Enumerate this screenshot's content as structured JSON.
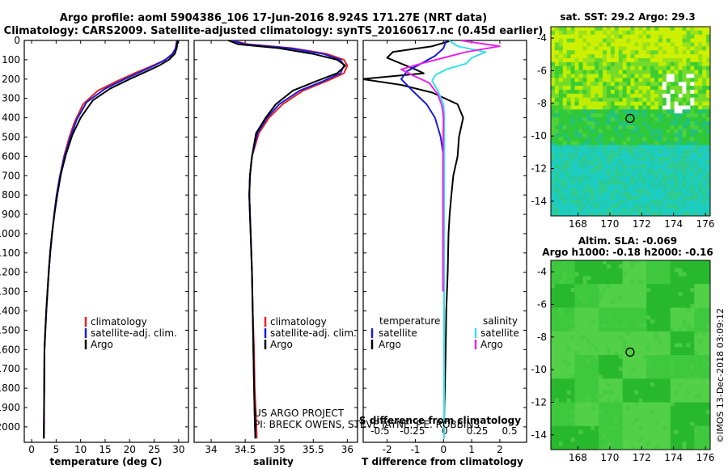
{
  "header": {
    "title_line1": "Argo profile: aoml 5904386_106 17-Jun-2016 8.924S 171.27E (NRT data)",
    "title_line2": "Climatology: CARS2009. Satellite-adjusted climatology: synTS_20160617.nc (0.45d earlier)"
  },
  "colors": {
    "climatology": "#e8201e",
    "satellite": "#1a1adc",
    "argo": "#000000",
    "sat_salinity": "#33e0e8",
    "clim_salinity": "#ea22ea"
  },
  "legend": {
    "climatology": "climatology",
    "satellite": "satellite-adj. clim.",
    "argo": "Argo",
    "satellite_short": "satellite",
    "temperature": "temperature",
    "salinity": "salinity"
  },
  "credits": {
    "line1": "US ARGO PROJECT",
    "line2": "PI: BRECK OWENS, STEVE JAYNE, P.E. ROBBINS"
  },
  "imos_stamp": "©IMOS 13-Dec-2018 03:09:12",
  "chart_data": [
    {
      "type": "line",
      "title": "",
      "xlabel": "temperature (deg C)",
      "ylabel": "",
      "xlim": [
        -1.5,
        32
      ],
      "ylim": [
        2080,
        0
      ],
      "xticks": [
        "0",
        "5",
        "10",
        "15",
        "20",
        "25",
        "30"
      ],
      "yticks": [
        "0",
        "100",
        "200",
        "300",
        "400",
        "500",
        "600",
        "700",
        "800",
        "900",
        "1000",
        "1100",
        "1200",
        "1300",
        "1400",
        "1500",
        "1600",
        "1700",
        "1800",
        "1900",
        "2000"
      ],
      "series": [
        {
          "name": "climatology",
          "color": "#e8201e",
          "x": [
            29.6,
            29.3,
            28.5,
            26.5,
            23.8,
            21,
            17.5,
            13.5,
            10.5,
            8.8,
            7.7,
            6.6,
            5.8,
            5.1,
            4.6,
            4.2,
            3.8,
            3.5,
            3.25,
            3,
            2.8,
            2.62,
            2.5
          ],
          "y": [
            0,
            50,
            80,
            110,
            140,
            170,
            210,
            260,
            330,
            420,
            500,
            600,
            700,
            800,
            900,
            1000,
            1100,
            1200,
            1300,
            1400,
            1500,
            1600,
            2060
          ]
        },
        {
          "name": "satellite-adj. clim.",
          "color": "#1a1adc",
          "x": [
            29.7,
            29.4,
            28.7,
            27.3,
            25,
            22.5,
            19,
            15,
            11.2,
            9.2,
            7.9,
            6.7,
            5.8,
            5.1,
            4.6,
            4.2,
            3.8,
            3.5,
            3.25,
            3,
            2.8,
            2.62,
            2.5
          ],
          "y": [
            0,
            40,
            70,
            100,
            130,
            160,
            200,
            250,
            320,
            410,
            500,
            600,
            700,
            800,
            900,
            1000,
            1100,
            1200,
            1300,
            1400,
            1500,
            1600,
            2060
          ]
        },
        {
          "name": "Argo",
          "color": "#000000",
          "x": [
            29.8,
            29.6,
            29.2,
            28,
            26,
            23.5,
            20,
            16,
            12.5,
            10,
            8.3,
            7,
            6,
            5.3,
            4.7,
            4.2,
            3.8,
            3.5,
            3.25,
            3,
            2.8,
            2.62,
            2.5
          ],
          "y": [
            0,
            40,
            70,
            100,
            130,
            160,
            200,
            250,
            310,
            400,
            490,
            590,
            690,
            790,
            890,
            990,
            1090,
            1190,
            1290,
            1390,
            1490,
            1590,
            2060
          ]
        }
      ]
    },
    {
      "type": "line",
      "title": "",
      "xlabel": "salinity",
      "ylabel": "",
      "xlim": [
        33.75,
        36.15
      ],
      "ylim": [
        2080,
        0
      ],
      "xticks": [
        "34",
        "34.5",
        "35",
        "35.5",
        "36"
      ],
      "series": [
        {
          "name": "climatology",
          "color": "#e8201e",
          "x": [
            34.3,
            34.55,
            35.2,
            35.7,
            35.95,
            36,
            35.95,
            35.7,
            35.35,
            35.05,
            34.85,
            34.7,
            34.6,
            34.57,
            34.56,
            34.57,
            34.58,
            34.6,
            34.61,
            34.63,
            34.64,
            34.66,
            34.67
          ],
          "y": [
            0,
            20,
            40,
            70,
            100,
            130,
            170,
            210,
            260,
            330,
            400,
            480,
            600,
            700,
            800,
            900,
            1000,
            1200,
            1400,
            1600,
            1800,
            1950,
            2060
          ]
        },
        {
          "name": "satellite-adj. clim.",
          "color": "#1a1adc",
          "x": [
            34.3,
            34.5,
            35.15,
            35.65,
            35.9,
            35.95,
            35.9,
            35.65,
            35.3,
            35.0,
            34.82,
            34.68,
            34.6,
            34.57,
            34.56,
            34.57,
            34.58,
            34.6,
            34.61,
            34.62,
            34.63,
            34.64,
            34.65
          ],
          "y": [
            0,
            20,
            40,
            70,
            100,
            130,
            170,
            210,
            260,
            330,
            400,
            480,
            600,
            700,
            800,
            900,
            1000,
            1200,
            1400,
            1600,
            1800,
            1950,
            2060
          ]
        },
        {
          "name": "Argo",
          "color": "#000000",
          "x": [
            34.25,
            34.4,
            35.0,
            35.5,
            35.85,
            35.97,
            35.85,
            35.55,
            35.2,
            34.95,
            34.8,
            34.66,
            34.6,
            34.57,
            34.56,
            34.57,
            34.58,
            34.6,
            34.61,
            34.62,
            34.63,
            34.64,
            34.65
          ],
          "y": [
            0,
            20,
            40,
            70,
            100,
            130,
            170,
            210,
            260,
            330,
            400,
            480,
            600,
            700,
            800,
            900,
            1000,
            1200,
            1400,
            1600,
            1800,
            1950,
            2060
          ]
        }
      ]
    },
    {
      "type": "line",
      "title": "",
      "xlabel": "T difference from climatology",
      "ylabel": "",
      "xlim": [
        -2.85,
        2.95
      ],
      "ylim": [
        2080,
        0
      ],
      "xticks": [
        "-2",
        "-1",
        "0",
        "1",
        "2"
      ],
      "secondary_xlabel": "S difference from climatology",
      "secondary_xticks": [
        "-0.5",
        "-0.25",
        "0",
        "0.25",
        "0.5"
      ],
      "series": [
        {
          "name": "temperature Argo",
          "color": "#000000",
          "x": [
            0.3,
            -0.4,
            -1.8,
            -2.0,
            -1.5,
            -1.0,
            -0.7,
            -2.9,
            -1.5,
            -0.4,
            0.5,
            0.7,
            0.55,
            0.5,
            0.35,
            0.28,
            0.22,
            0.18,
            0.15,
            0.1,
            0.08,
            0.05,
            0.03,
            0.02,
            0.02
          ],
          "y": [
            0,
            30,
            60,
            90,
            120,
            150,
            170,
            200,
            230,
            270,
            330,
            400,
            500,
            600,
            700,
            800,
            900,
            1000,
            1200,
            1400,
            1600,
            1800,
            1900,
            2000,
            2060
          ]
        },
        {
          "name": "temperature satellite",
          "color": "#1a1adc",
          "x": [
            0.1,
            0.0,
            -0.3,
            -0.8,
            -1.3,
            -1.5,
            -1.1,
            -0.6,
            -0.3,
            -0.1,
            0.0,
            0.02,
            0.02,
            0.02,
            0.02,
            0.02
          ],
          "y": [
            0,
            40,
            80,
            120,
            160,
            200,
            260,
            330,
            400,
            500,
            600,
            800,
            1000,
            1400,
            1800,
            2060
          ]
        },
        {
          "name": "salinity satellite",
          "color": "#33e0e8",
          "x": [
            0.2,
            0.5,
            1.5,
            1.0,
            0.8,
            0.1,
            -0.3,
            -0.4,
            -0.2,
            0.0,
            0.03,
            0.03,
            0.02,
            0.02,
            0.02
          ],
          "y": [
            0,
            30,
            60,
            90,
            120,
            150,
            180,
            210,
            260,
            330,
            400,
            600,
            1000,
            1600,
            2060
          ]
        },
        {
          "name": "salinity climatology",
          "color": "#ea22ea",
          "x": [
            0.6,
            2.0,
            0.8,
            0.0,
            -0.8,
            -1.5,
            -1.1,
            -0.5,
            -0.2,
            -0.05,
            0.0,
            -0.02,
            -0.02,
            -0.02
          ],
          "y": [
            0,
            30,
            60,
            90,
            120,
            150,
            180,
            220,
            280,
            340,
            400,
            600,
            1000,
            1300
          ]
        }
      ]
    },
    {
      "type": "heatmap",
      "title": "sat. SST: 29.2 Argo: 29.3",
      "xticks": [
        "168",
        "170",
        "172",
        "174",
        "176"
      ],
      "yticks": [
        "-4",
        "-6",
        "-8",
        "-10",
        "-12",
        "-14"
      ],
      "xlim": [
        166.3,
        176.3
      ],
      "ylim": [
        -14.9,
        -3.3
      ],
      "marker": {
        "lon": 171.27,
        "lat": -8.924
      }
    },
    {
      "type": "heatmap",
      "title": "Altim. SLA: -0.069",
      "subtitle": "Argo h1000: -0.18 h2000: -0.16",
      "xticks": [
        "168",
        "170",
        "172",
        "174",
        "176"
      ],
      "yticks": [
        "-4",
        "-6",
        "-8",
        "-10",
        "-12",
        "-14"
      ],
      "xlim": [
        166.3,
        176.3
      ],
      "ylim": [
        -14.9,
        -3.3
      ],
      "marker": {
        "lon": 171.27,
        "lat": -8.924
      }
    }
  ]
}
